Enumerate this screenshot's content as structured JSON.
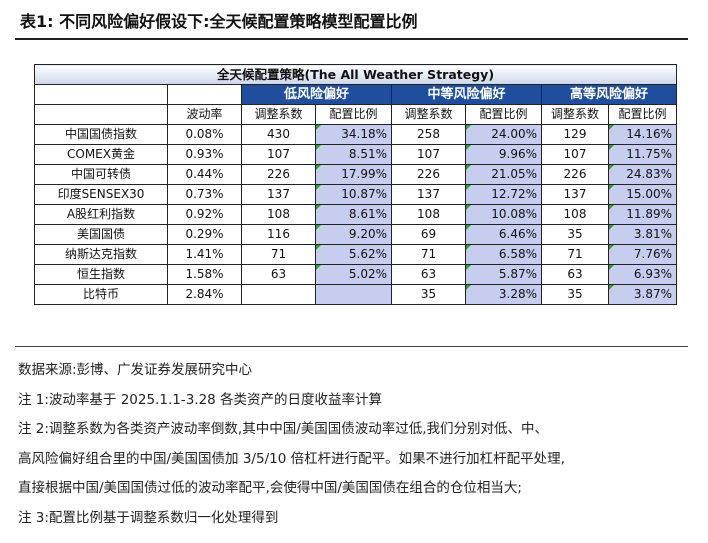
{
  "heading": {
    "label": "表1:",
    "title": "不同风险偏好假设下:全天候配置策略模型配置比例"
  },
  "table": {
    "title": "全天候配置策略(The All Weather Strategy)",
    "groups": [
      "低风险偏好",
      "中等风险偏好",
      "高等风险偏好"
    ],
    "subheaders": {
      "volatility": "波动率",
      "factor": "调整系数",
      "ratio": "配置比例"
    },
    "rows": [
      {
        "name": "中国国债指数",
        "vol": "0.08%",
        "low_f": "430",
        "low_r": "34.18%",
        "mid_f": "258",
        "mid_r": "24.00%",
        "high_f": "129",
        "high_r": "14.16%"
      },
      {
        "name": "COMEX黄金",
        "vol": "0.93%",
        "low_f": "107",
        "low_r": "8.51%",
        "mid_f": "107",
        "mid_r": "9.96%",
        "high_f": "107",
        "high_r": "11.75%"
      },
      {
        "name": "中国可转债",
        "vol": "0.44%",
        "low_f": "226",
        "low_r": "17.99%",
        "mid_f": "226",
        "mid_r": "21.05%",
        "high_f": "226",
        "high_r": "24.83%"
      },
      {
        "name": "印度SENSEX30",
        "vol": "0.73%",
        "low_f": "137",
        "low_r": "10.87%",
        "mid_f": "137",
        "mid_r": "12.72%",
        "high_f": "137",
        "high_r": "15.00%"
      },
      {
        "name": "A股红利指数",
        "vol": "0.92%",
        "low_f": "108",
        "low_r": "8.61%",
        "mid_f": "108",
        "mid_r": "10.08%",
        "high_f": "108",
        "high_r": "11.89%"
      },
      {
        "name": "美国国债",
        "vol": "0.29%",
        "low_f": "116",
        "low_r": "9.20%",
        "mid_f": "69",
        "mid_r": "6.46%",
        "high_f": "35",
        "high_r": "3.81%"
      },
      {
        "name": "纳斯达克指数",
        "vol": "1.41%",
        "low_f": "71",
        "low_r": "5.62%",
        "mid_f": "71",
        "mid_r": "6.58%",
        "high_f": "71",
        "high_r": "7.76%"
      },
      {
        "name": "恒生指数",
        "vol": "1.58%",
        "low_f": "63",
        "low_r": "5.02%",
        "mid_f": "63",
        "mid_r": "5.87%",
        "high_f": "63",
        "high_r": "6.93%"
      },
      {
        "name": "比特币",
        "vol": "2.84%",
        "low_f": "",
        "low_r": "",
        "mid_f": "35",
        "mid_r": "3.28%",
        "high_f": "35",
        "high_r": "3.87%"
      }
    ]
  },
  "notes": {
    "source": "数据来源:彭博、广发证券发展研究中心",
    "note1": "注 1:波动率基于 2025.1.1-3.28 各类资产的日度收益率计算",
    "note2_line1": "注 2:调整系数为各类资产波动率倒数,其中中国/美国国债波动率过低,我们分别对低、中、",
    "note2_line2": "高风险偏好组合里的中国/美国国债加 3/5/10 倍杠杆进行配平。如果不进行加杠杆配平处理,",
    "note2_line3": "直接根据中国/美国国债过低的波动率配平,会使得中国/美国国债在组合的仓位相当大;",
    "note3": "注 3:配置比例基于调整系数归一化处理得到"
  }
}
